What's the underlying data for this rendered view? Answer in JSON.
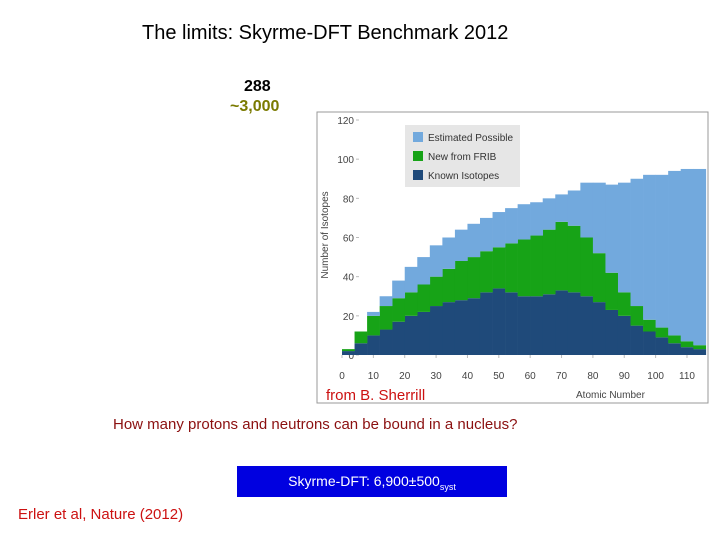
{
  "slide": {
    "title": "The limits: Skyrme-DFT Benchmark 2012",
    "count_known": "288",
    "count_total": "~3,000",
    "credit": "from B. Sherrill",
    "question": "How many protons and neutrons can be bound in a nucleus?",
    "box": {
      "text": "Skyrme-DFT: 6,900±500",
      "subscript": "syst"
    },
    "citation": "Erler et al, Nature (2012)"
  },
  "chart_data": {
    "type": "histogram",
    "stacked": true,
    "grid": false,
    "legend": "top-left",
    "xlabel": "Atomic Number",
    "ylabel": "Number of Isotopes",
    "bins": [
      0,
      4,
      8,
      12,
      16,
      20,
      24,
      28,
      32,
      36,
      40,
      44,
      48,
      52,
      56,
      60,
      64,
      68,
      72,
      76,
      80,
      84,
      88,
      92,
      96,
      100,
      104,
      108,
      112,
      116
    ],
    "series": [
      {
        "name": "Known Isotopes",
        "color": "#1f4a7a",
        "values": [
          2,
          6,
          10,
          13,
          17,
          20,
          22,
          25,
          27,
          28,
          29,
          32,
          34,
          32,
          30,
          30,
          31,
          33,
          32,
          30,
          27,
          23,
          20,
          15,
          12,
          9,
          6,
          4,
          3
        ]
      },
      {
        "name": "New from FRIB",
        "color": "#17a317",
        "values": [
          1,
          6,
          10,
          12,
          12,
          12,
          14,
          15,
          17,
          20,
          21,
          21,
          21,
          25,
          29,
          31,
          33,
          35,
          34,
          30,
          25,
          19,
          12,
          10,
          6,
          5,
          4,
          3,
          2
        ]
      },
      {
        "name": "Estimated Possible",
        "color": "#72a9dd",
        "values": [
          0,
          0,
          2,
          5,
          9,
          13,
          14,
          16,
          16,
          16,
          17,
          17,
          18,
          18,
          18,
          17,
          16,
          14,
          18,
          28,
          36,
          45,
          56,
          65,
          74,
          78,
          84,
          88,
          90
        ]
      }
    ],
    "xlim": [
      -3,
      116
    ],
    "ylim": [
      0,
      120
    ],
    "xticks": [
      0,
      10,
      20,
      30,
      40,
      50,
      60,
      70,
      80,
      90,
      100,
      110
    ],
    "yticks": [
      0,
      20,
      40,
      60,
      80,
      100,
      120
    ]
  }
}
